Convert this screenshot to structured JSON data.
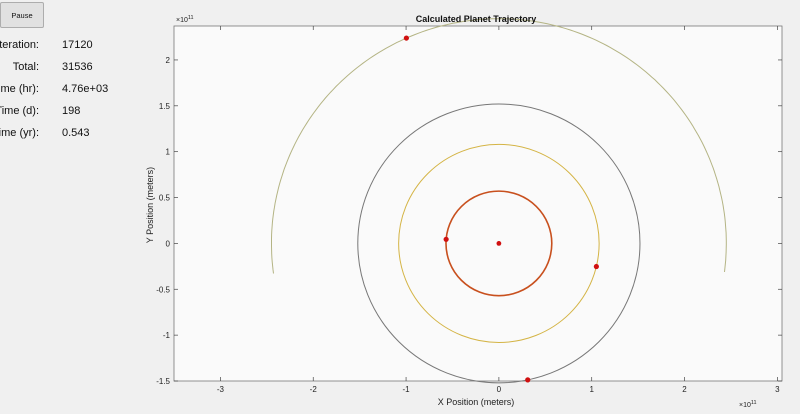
{
  "controls": {
    "pause_label": "Pause"
  },
  "stats": [
    {
      "label": "Iteration:",
      "value": "17120"
    },
    {
      "label": "Total:",
      "value": "31536"
    },
    {
      "label": "Time (hr):",
      "value": "4.76e+03"
    },
    {
      "label": "Time (d):",
      "value": "198"
    },
    {
      "label": "Time (yr):",
      "value": "0.543"
    }
  ],
  "chart_data": {
    "type": "line",
    "title": "Calculated Planet Trajectory",
    "xlabel": "X Position (meters)",
    "ylabel": "Y Position (meters)",
    "x_exponent_base": "×10",
    "x_exponent_power": "11",
    "y_exponent_base": "×10",
    "y_exponent_power": "11",
    "xlim": [
      -3.5,
      3.05
    ],
    "ylim": [
      -1.5,
      2.37
    ],
    "xticks": [
      -3,
      -2,
      -1,
      0,
      1,
      2,
      3
    ],
    "yticks": [
      -1.5,
      -1,
      -0.5,
      0,
      0.5,
      1,
      1.5,
      2
    ],
    "tick_labels_x": [
      "-3",
      "-2",
      "-1",
      "0",
      "1",
      "2",
      "3"
    ],
    "tick_labels_y": [
      "-1.5",
      "-1",
      "-0.5",
      "0",
      "0.5",
      "1",
      "1.5",
      "2"
    ],
    "grid": false,
    "sun": {
      "name": "sun",
      "x": 0,
      "y": 0,
      "color": "#d01010"
    },
    "orbits": [
      {
        "name": "orbit-1",
        "radius": 0.57,
        "color": "#c8501e",
        "start_deg": 0,
        "end_deg": 360,
        "planet_deg": 175.5
      },
      {
        "name": "orbit-2",
        "radius": 1.08,
        "color": "#d4b445",
        "start_deg": 0,
        "end_deg": 360,
        "planet_deg": -13.5
      },
      {
        "name": "orbit-3",
        "radius": 1.52,
        "color": "#777777",
        "start_deg": 0,
        "end_deg": 360,
        "planet_deg": -78.2
      },
      {
        "name": "orbit-4",
        "radius": 2.45,
        "color": "#b4b484",
        "start_deg": -7.3,
        "end_deg": 188,
        "planet_deg": 114
      }
    ],
    "planet_color": "#d01010"
  }
}
